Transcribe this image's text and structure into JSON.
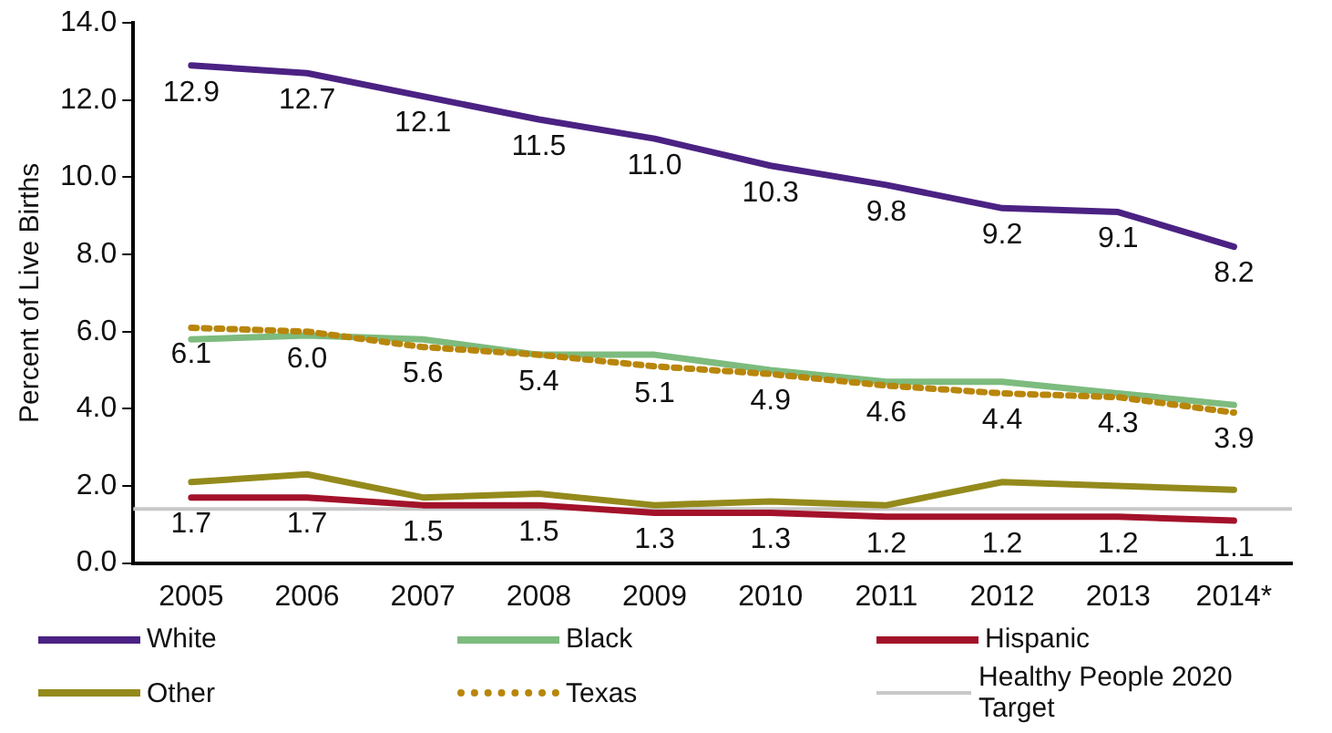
{
  "chart_data": {
    "type": "line",
    "ylabel": "Percent of Live Births",
    "categories": [
      "2005",
      "2006",
      "2007",
      "2008",
      "2009",
      "2010",
      "2011",
      "2012",
      "2013",
      "2014*"
    ],
    "ylim": [
      0,
      14
    ],
    "yticks": [
      {
        "value": 0,
        "label": "0.0"
      },
      {
        "value": 2,
        "label": "2.0"
      },
      {
        "value": 4,
        "label": "4.0"
      },
      {
        "value": 6,
        "label": "6.0"
      },
      {
        "value": 8,
        "label": "8.0"
      },
      {
        "value": 10,
        "label": "10.0"
      },
      {
        "value": 12,
        "label": "12.0"
      },
      {
        "value": 14,
        "label": "14.0"
      }
    ],
    "grid": false,
    "legend": "bottom",
    "marker": "none",
    "series": [
      {
        "name": "White",
        "color": "#4b2283",
        "values": [
          12.9,
          12.7,
          12.1,
          11.5,
          11.0,
          10.3,
          9.8,
          9.2,
          9.1,
          8.2
        ],
        "value_labels": [
          "12.9",
          "12.7",
          "12.1",
          "11.5",
          "11.0",
          "10.3",
          "9.8",
          "9.2",
          "9.1",
          "8.2"
        ]
      },
      {
        "name": "Black",
        "color": "#7dbb7e",
        "values": [
          5.8,
          5.9,
          5.8,
          5.4,
          5.4,
          5.0,
          4.7,
          4.7,
          4.4,
          4.1
        ]
      },
      {
        "name": "Hispanic",
        "color": "#a3122a",
        "values": [
          1.7,
          1.7,
          1.5,
          1.5,
          1.3,
          1.3,
          1.2,
          1.2,
          1.2,
          1.1
        ],
        "value_labels": [
          "1.7",
          "1.7",
          "1.5",
          "1.5",
          "1.3",
          "1.3",
          "1.2",
          "1.2",
          "1.2",
          "1.1"
        ]
      },
      {
        "name": "Other",
        "color": "#948a1c",
        "values": [
          2.1,
          2.3,
          1.7,
          1.8,
          1.5,
          1.6,
          1.5,
          2.1,
          2.0,
          1.9
        ]
      },
      {
        "name": "Texas",
        "color": "#b8860b",
        "line_style": "dotted",
        "values": [
          6.1,
          6.0,
          5.6,
          5.4,
          5.1,
          4.9,
          4.6,
          4.4,
          4.3,
          3.9
        ],
        "value_labels": [
          "6.1",
          "6.0",
          "5.6",
          "5.4",
          "5.1",
          "4.9",
          "4.6",
          "4.4",
          "4.3",
          "3.9"
        ]
      }
    ],
    "ref_lines": [
      {
        "axis": "y",
        "value": 1.4,
        "label": "Healthy People 2020 Target",
        "color": "#c8c8c8"
      }
    ]
  }
}
